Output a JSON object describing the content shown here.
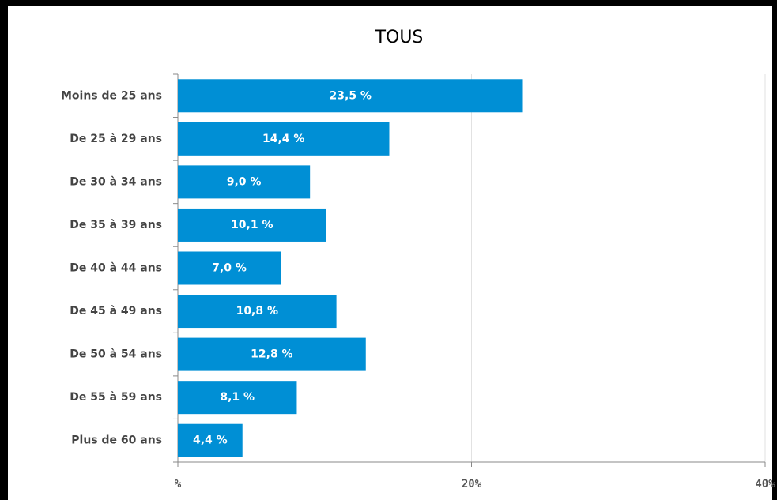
{
  "chart_data": {
    "type": "bar",
    "orientation": "horizontal",
    "title": "TOUS",
    "categories": [
      "Moins de 25 ans",
      "De 25 à 29 ans",
      "De 30 à 34 ans",
      "De 35 à 39 ans",
      "De 40 à 44 ans",
      "De 45 à 49 ans",
      "De 50 à 54 ans",
      "De 55 à 59 ans",
      "Plus de 60 ans"
    ],
    "values": [
      23.5,
      14.4,
      9.0,
      10.1,
      7.0,
      10.8,
      12.8,
      8.1,
      4.4
    ],
    "value_labels": [
      "23,5 %",
      "14,4 %",
      "9,0 %",
      "10,1 %",
      "7,0 %",
      "10,8 %",
      "12,8 %",
      "8,1 %",
      "4,4 %"
    ],
    "color": "#008fd5",
    "xlim": [
      0,
      40
    ],
    "xticks": [
      {
        "value": 0,
        "label": "%"
      },
      {
        "value": 20,
        "label": "20%"
      },
      {
        "value": 40,
        "label": "40%"
      }
    ],
    "grid": true
  }
}
